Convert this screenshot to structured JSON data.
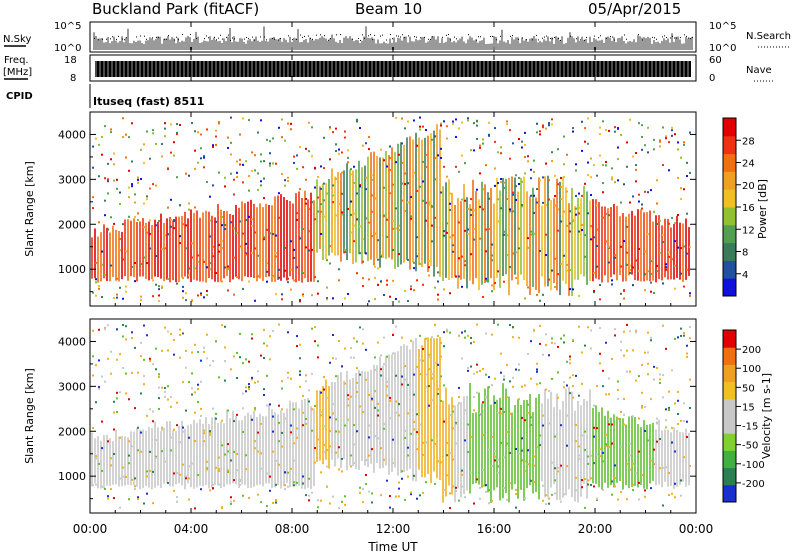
{
  "header": {
    "station": "Buckland Park (fitACF)",
    "beam": "Beam 10",
    "date": "05/Apr/2015"
  },
  "summary": {
    "nsky_label": "N.Sky",
    "nsky_ticks": [
      "10^5",
      "10^0"
    ],
    "nsearch_label": "N.Search",
    "nsearch_ticks": [
      "10^5",
      "10^0"
    ],
    "freq_label": "Freq.",
    "freq_unit": "[MHz]",
    "freq_ticks": [
      "18",
      "8"
    ],
    "nave_label": "Nave",
    "nave_ticks": [
      "60",
      "0"
    ],
    "cpid_label": "CPID",
    "cpid_value": "Ituseq (fast) 8511"
  },
  "chart_data": [
    {
      "type": "heatmap",
      "name": "power-panel",
      "ylabel": "Slant Range [km]",
      "yticks": [
        "1000",
        "2000",
        "3000",
        "4000"
      ],
      "ylim": [
        180,
        4500
      ],
      "colorbar_label": "Power [dB]",
      "colorbar_ticks": [
        "4",
        "8",
        "12",
        "16",
        "20",
        "24",
        "28"
      ],
      "colorbar_colors": [
        "#1010e0",
        "#2050a0",
        "#3a7c5a",
        "#50a050",
        "#90c030",
        "#f0c020",
        "#f0a020",
        "#f07010",
        "#f03010",
        "#e00000"
      ]
    },
    {
      "type": "heatmap",
      "name": "velocity-panel",
      "ylabel": "Slant Range [km]",
      "yticks": [
        "1000",
        "2000",
        "3000",
        "4000"
      ],
      "ylim": [
        180,
        4500
      ],
      "colorbar_label": "Velocity [m s-1]",
      "colorbar_ticks": [
        "200",
        "100",
        "50",
        "15",
        "-15",
        "-50",
        "-100",
        "-200"
      ],
      "colorbar_colors": [
        "#1a2fd0",
        "#2a8050",
        "#40b040",
        "#80d030",
        "#c8c8c8",
        "#c8c8c8",
        "#f0c020",
        "#f0a020",
        "#f07010",
        "#e00000"
      ]
    }
  ],
  "x_axis": {
    "label": "Time UT",
    "ticks": [
      "00:00",
      "04:00",
      "08:00",
      "12:00",
      "16:00",
      "20:00",
      "00:00"
    ]
  }
}
